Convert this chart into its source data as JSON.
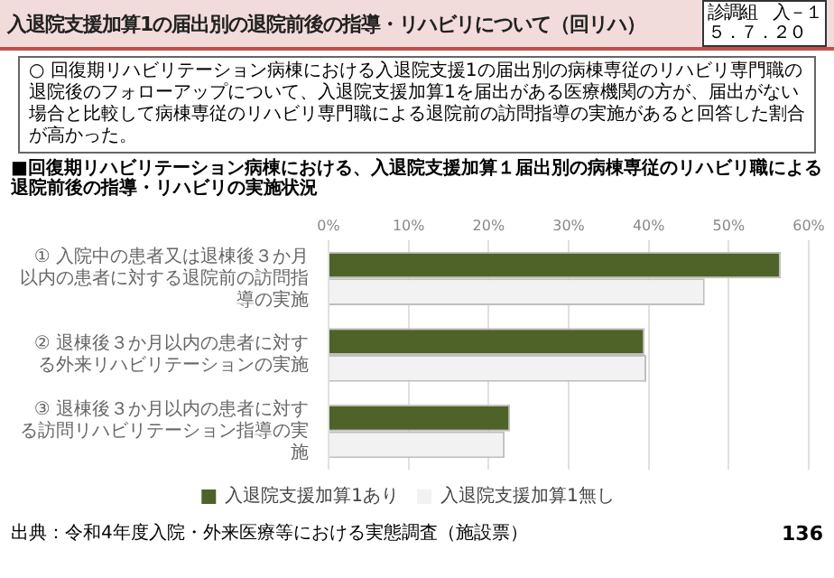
{
  "chart_data": {
    "type": "bar",
    "orientation": "horizontal",
    "title": "入退院支援加算1の届出別の退院前後の指導・リハビリについて（回リハ）",
    "subtitle": "■回復期リハビリテーション病棟における、入退院支援加算１届出別の病棟専従のリハビリ職による退院前後の指導・リハビリの実施状況",
    "annotations": [
      "診調組　入－１",
      "５．７．２０",
      "○ 回復期リハビリテーション病棟における入退院支援1の届出別の病棟専従のリハビリ専門職の退院後のフォローアップについて、入退院支援加算1を届出がある医療機関の方が、届出がない場合と比較して病棟専従のリハビリ専門職による退院前の訪問指導の実施があると回答した割合が高かった。",
      "出典：令和4年度入院・外来医療等における実態調査（施設票）",
      "136"
    ],
    "categories": [
      "① 入院中の患者又は退棟後３か月以内の患者に対する退院前の訪問指導の実施",
      "② 退棟後３か月以内の患者に対する外来リハビリテーションの実施",
      "③ 退棟後３か月以内の患者に対する訪問リハビリテーション指導の実施"
    ],
    "series": [
      {
        "name": "入退院支援加算1あり",
        "color": "#4f6228",
        "values": [
          56.5,
          39.5,
          22.7
        ]
      },
      {
        "name": "入退院支援加算1無し",
        "color": "#f2f2f2",
        "values": [
          47,
          39.7,
          22
        ]
      }
    ],
    "xlim": [
      0,
      60
    ],
    "xticks": [
      {
        "value": 0,
        "label": "0%"
      },
      {
        "value": 10,
        "label": "10%"
      },
      {
        "value": 20,
        "label": "20%"
      },
      {
        "value": 30,
        "label": "30%"
      },
      {
        "value": 40,
        "label": "40%"
      },
      {
        "value": 50,
        "label": "50%"
      },
      {
        "value": 60,
        "label": "60%"
      }
    ],
    "grid": "x",
    "legend": "bottom"
  }
}
